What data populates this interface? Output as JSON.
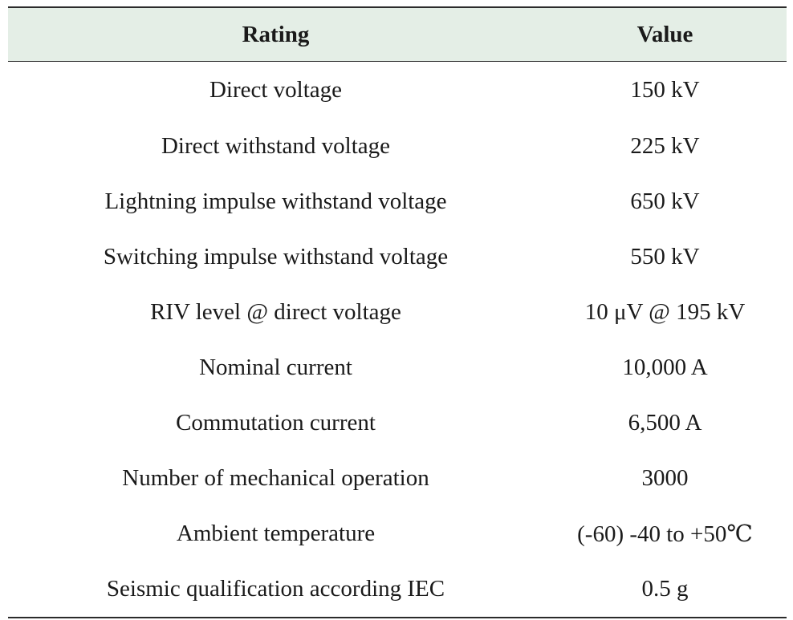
{
  "table": {
    "headers": [
      "Rating",
      "Value"
    ],
    "rows": [
      [
        "Direct voltage",
        "150 kV"
      ],
      [
        "Direct withstand voltage",
        "225 kV"
      ],
      [
        "Lightning impulse withstand voltage",
        "650 kV"
      ],
      [
        "Switching impulse withstand voltage",
        "550 kV"
      ],
      [
        "RIV level @ direct voltage",
        "10 μV @ 195 kV"
      ],
      [
        "Nominal current",
        "10,000 A"
      ],
      [
        "Commutation current",
        "6,500 A"
      ],
      [
        "Number of mechanical operation",
        "3000"
      ],
      [
        "Ambient temperature",
        "(-60) -40 to +50℃"
      ],
      [
        "Seismic qualification according IEC",
        "0.5 g"
      ]
    ]
  },
  "colors": {
    "header_background": "#e4eee6",
    "rule": "#2b2b2b",
    "text": "#1a1a1a"
  }
}
